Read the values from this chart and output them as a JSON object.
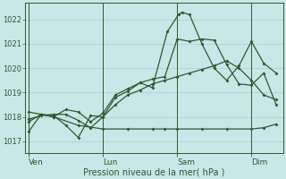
{
  "background_color": "#c8e8e8",
  "grid_color": "#a8cece",
  "line_color": "#2d5a2d",
  "ylim": [
    1016.5,
    1022.7
  ],
  "yticks": [
    1017,
    1018,
    1019,
    1020,
    1021,
    1022
  ],
  "xtick_labels": [
    "Ven",
    "Lun",
    "Sam",
    "Dim"
  ],
  "xtick_positions": [
    0,
    3,
    6,
    9
  ],
  "xlabel": "Pression niveau de la mer( hPa )",
  "series1_x": [
    0.0,
    0.5,
    1.0,
    1.5,
    2.0,
    2.5,
    3.0,
    3.5,
    4.0,
    4.5,
    5.0,
    5.6,
    6.05,
    6.2,
    6.5,
    7.0,
    7.5,
    8.0,
    8.5,
    9.0,
    9.5,
    10.0
  ],
  "series1_y": [
    1017.4,
    1018.1,
    1018.05,
    1017.65,
    1017.15,
    1018.05,
    1018.0,
    1018.8,
    1019.05,
    1019.4,
    1019.2,
    1021.5,
    1022.2,
    1022.3,
    1022.2,
    1021.0,
    1020.0,
    1019.5,
    1020.1,
    1021.1,
    1020.2,
    1019.8
  ],
  "series2_x": [
    0.0,
    0.5,
    1.0,
    1.5,
    2.0,
    2.5,
    3.0,
    3.5,
    4.0,
    4.5,
    5.0,
    5.5,
    6.0,
    6.5,
    7.0,
    7.5,
    8.0,
    8.5,
    9.0,
    9.5,
    10.0
  ],
  "series2_y": [
    1017.9,
    1018.05,
    1018.1,
    1018.1,
    1017.85,
    1017.55,
    1018.0,
    1018.5,
    1018.9,
    1019.1,
    1019.35,
    1019.5,
    1019.65,
    1019.8,
    1019.95,
    1020.1,
    1020.3,
    1020.0,
    1019.5,
    1018.9,
    1018.7
  ],
  "series3_x": [
    0.0,
    0.5,
    1.0,
    2.0,
    3.0,
    4.0,
    5.0,
    5.5,
    6.0,
    7.0,
    8.0,
    9.0,
    9.5,
    10.0
  ],
  "series3_y": [
    1018.2,
    1018.1,
    1018.0,
    1017.65,
    1017.5,
    1017.5,
    1017.5,
    1017.5,
    1017.5,
    1017.5,
    1017.5,
    1017.5,
    1017.55,
    1017.7
  ],
  "series4_x": [
    0.0,
    0.5,
    1.0,
    1.5,
    2.0,
    2.5,
    3.0,
    3.5,
    4.0,
    4.5,
    5.0,
    5.5,
    6.0,
    6.5,
    7.0,
    7.5,
    8.0,
    8.5,
    9.0,
    9.5,
    10.0
  ],
  "series4_y": [
    1017.8,
    1018.1,
    1018.0,
    1018.3,
    1018.2,
    1017.8,
    1018.15,
    1018.9,
    1019.15,
    1019.4,
    1019.55,
    1019.65,
    1021.2,
    1021.1,
    1021.2,
    1021.15,
    1020.15,
    1019.35,
    1019.3,
    1019.8,
    1018.5
  ],
  "day_vlines": [
    0,
    3,
    6,
    9
  ],
  "figsize": [
    3.2,
    2.0
  ],
  "dpi": 100
}
